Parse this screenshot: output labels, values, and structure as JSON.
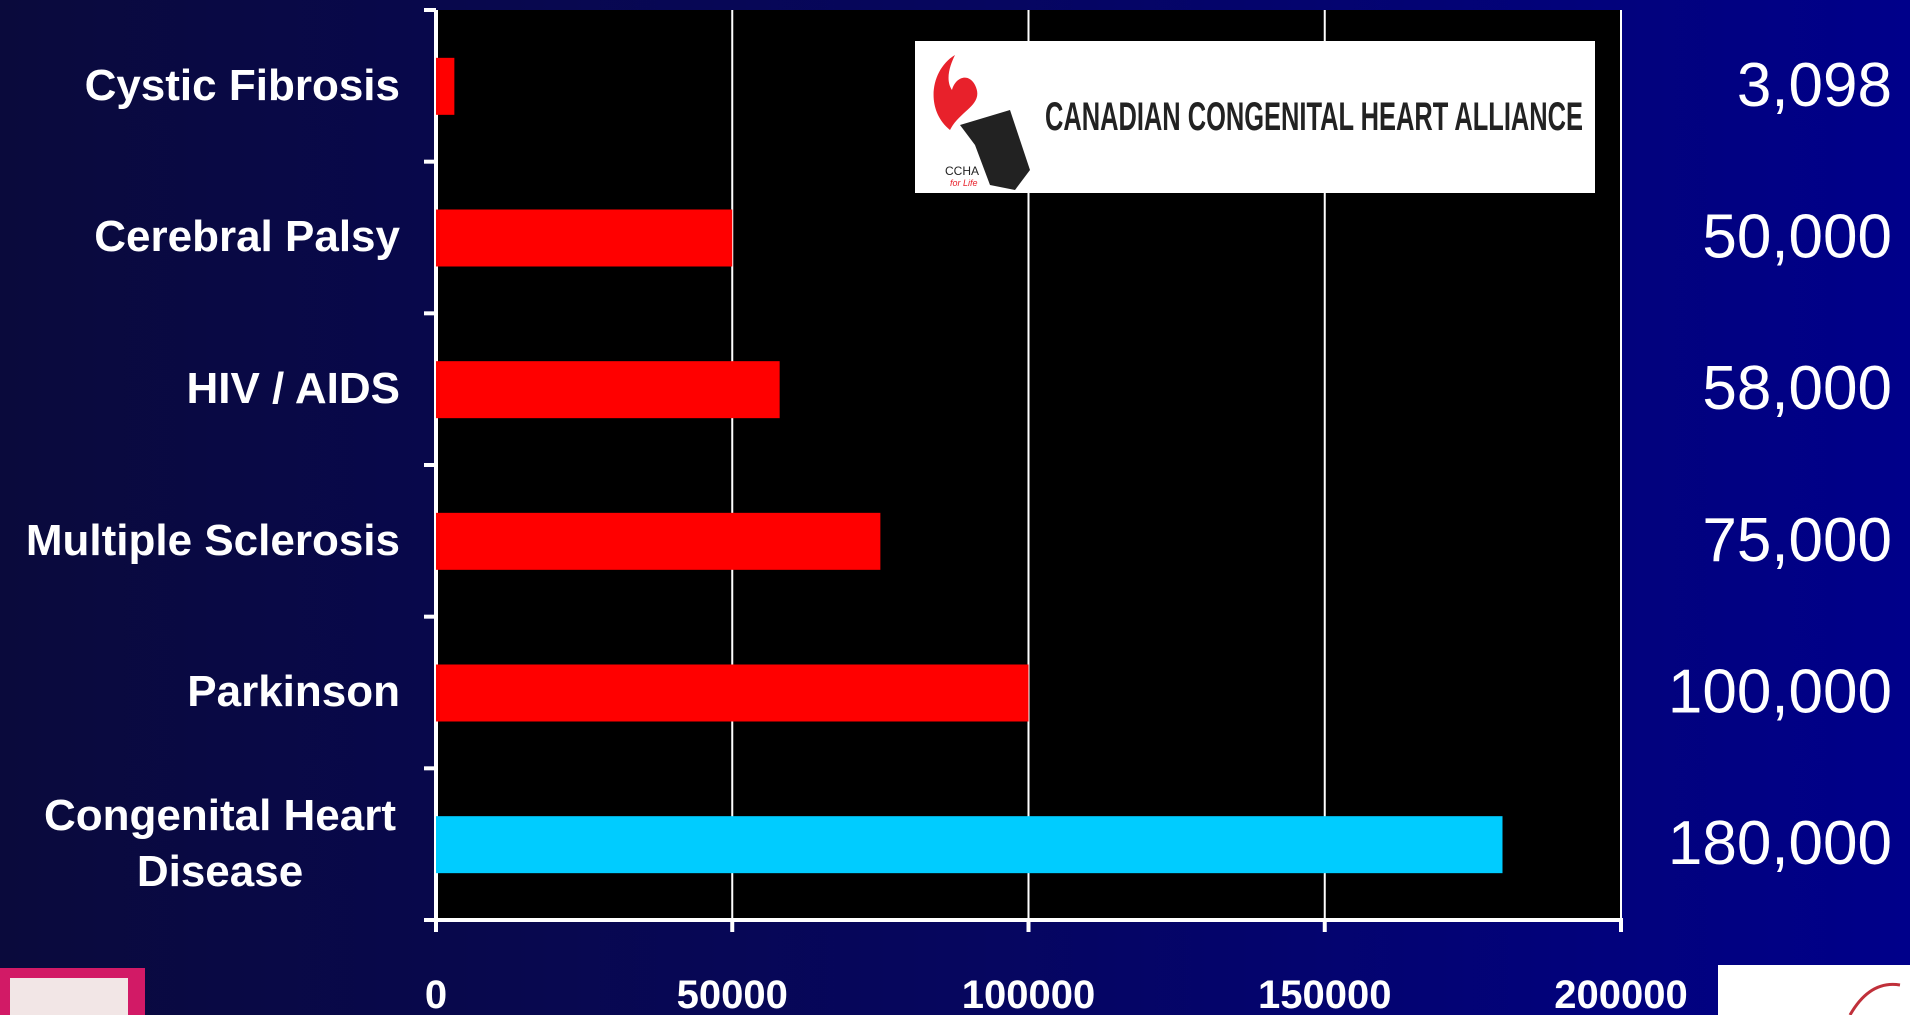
{
  "chart_data": {
    "type": "barh",
    "categories": [
      "Cystic Fibrosis",
      "Cerebral Palsy",
      "HIV / AIDS",
      "Multiple Sclerosis",
      "Parkinson",
      "Congenital Heart Disease"
    ],
    "values": [
      3098,
      50000,
      58000,
      75000,
      100000,
      180000
    ],
    "value_labels": [
      "3,098",
      "50,000",
      "58,000",
      "75,000",
      "100,000",
      "180,000"
    ],
    "colors": [
      "#ff0000",
      "#ff0000",
      "#ff0000",
      "#ff0000",
      "#ff0000",
      "#00ccff"
    ],
    "xlim": [
      0,
      200000
    ],
    "xticks": [
      0,
      50000,
      100000,
      150000,
      200000
    ],
    "grid": true,
    "logo_text": "CANADIAN CONGENITAL HEART ALLIANCE",
    "logo_abbrev": "CCHA",
    "logo_tagline": "for Life"
  }
}
